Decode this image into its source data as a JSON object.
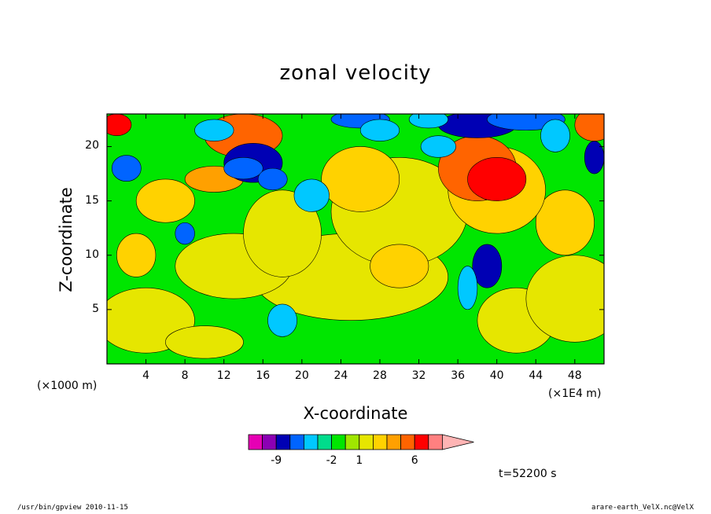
{
  "chart_data": {
    "type": "heatmap",
    "title": "zonal velocity",
    "xlabel": "X-coordinate",
    "ylabel": "Z-coordinate",
    "x_units_left": "(×1000 m)",
    "x_units_right": "(×1E4 m)",
    "xlim": [
      0,
      51
    ],
    "ylim": [
      0,
      23
    ],
    "x_ticks": [
      "4",
      "8",
      "12",
      "16",
      "20",
      "24",
      "28",
      "32",
      "36",
      "40",
      "44",
      "48"
    ],
    "y_ticks": [
      "5",
      "10",
      "15",
      "20"
    ],
    "colorbar": {
      "colors": [
        "#e600b4",
        "#8c00b4",
        "#0000b4",
        "#0064ff",
        "#00c8ff",
        "#00dc8c",
        "#00e600",
        "#a0e600",
        "#e6e600",
        "#ffd200",
        "#ffa000",
        "#ff6400",
        "#ff0000",
        "#ff8080",
        "#ffb4b4"
      ],
      "labels": [
        "-9",
        "-2",
        "1",
        "6"
      ]
    },
    "time_label": "t=52200 s",
    "grid": false
  },
  "footer": {
    "left": "/usr/bin/gpview  2010-11-15",
    "right": "arare-earth_VelX.nc@VelX"
  }
}
